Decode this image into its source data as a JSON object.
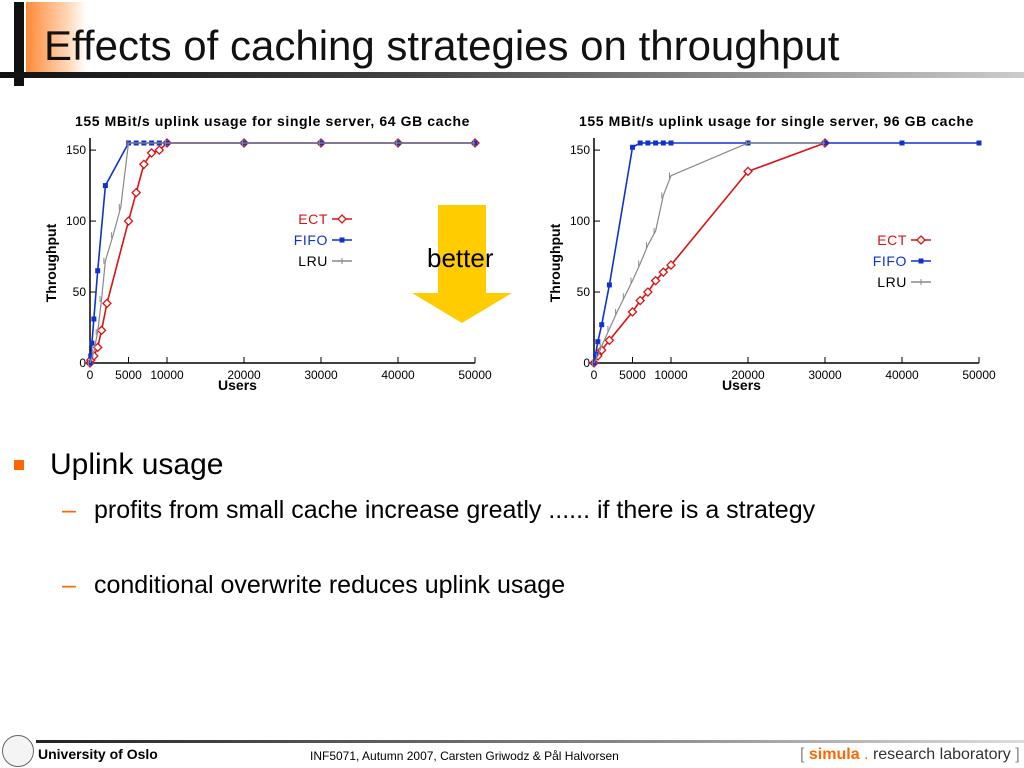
{
  "slide": {
    "title": "Effects of caching strategies on throughput",
    "better_label": "better",
    "bullet": "Uplink usage",
    "sub_bullets": [
      "profits from small cache increase greatly ...... if there is a strategy",
      "conditional overwrite reduces uplink usage"
    ],
    "dash": "–"
  },
  "footer": {
    "university": "University of Oslo",
    "course": "INF5071,  Autumn 2007,  Carsten Griwodz & Pål Halvorsen",
    "bracket_open": "[",
    "simula": "simula",
    "dot": ".",
    "lab": "research laboratory",
    "bracket_close": "]"
  },
  "colors": {
    "ECT": "#dd1111",
    "FIFO": "#1133cc",
    "LRU": "#888888",
    "accent": "#ff6600",
    "arrow": "#ffcc00"
  },
  "chart_data": [
    {
      "type": "line",
      "title": "155 MBit/s uplink usage for single server, 64 GB cache",
      "xlabel": "Users",
      "ylabel": "Throughput",
      "xlim": [
        0,
        50000
      ],
      "ylim": [
        0,
        155
      ],
      "xticks": [
        0,
        5000,
        10000,
        20000,
        30000,
        40000,
        50000
      ],
      "xtick_labels": [
        "0",
        "5000",
        "10000",
        "20000",
        "30000",
        "40000",
        "50000"
      ],
      "yticks": [
        0,
        50,
        100,
        150
      ],
      "legend": "center-right",
      "series": [
        {
          "name": "ECT",
          "marker": "diamond",
          "x": [
            0,
            100,
            500,
            1000,
            1500,
            2200,
            5000,
            6000,
            7000,
            8000,
            9000,
            10000,
            20000,
            30000,
            40000,
            50000
          ],
          "y": [
            0,
            2,
            5,
            11,
            23,
            42,
            100,
            120,
            140,
            148,
            150,
            155,
            155,
            155,
            155,
            155
          ]
        },
        {
          "name": "FIFO",
          "marker": "square",
          "x": [
            0,
            100,
            250,
            500,
            1000,
            2000,
            5000,
            6000,
            7000,
            8000,
            9000,
            10000,
            20000,
            30000,
            40000,
            50000
          ],
          "y": [
            0,
            5,
            14,
            31,
            65,
            125,
            155,
            155,
            155,
            155,
            155,
            155,
            155,
            155,
            155,
            155
          ]
        },
        {
          "name": "LRU",
          "marker": "bar",
          "x": [
            0,
            500,
            1000,
            1500,
            2000,
            3000,
            4000,
            5000,
            10000,
            20000,
            30000,
            40000,
            50000
          ],
          "y": [
            0,
            8,
            22,
            45,
            72,
            90,
            110,
            155,
            155,
            155,
            155,
            155,
            155
          ]
        }
      ]
    },
    {
      "type": "line",
      "title": "155 MBit/s uplink usage for single server, 96 GB cache",
      "xlabel": "Users",
      "ylabel": "Throughput",
      "xlim": [
        0,
        50000
      ],
      "ylim": [
        0,
        155
      ],
      "xticks": [
        0,
        5000,
        10000,
        20000,
        30000,
        40000,
        50000
      ],
      "xtick_labels": [
        "0",
        "5000",
        "10000",
        "20000",
        "30000",
        "40000",
        "50000"
      ],
      "yticks": [
        0,
        50,
        100,
        150
      ],
      "legend": "center-right",
      "series": [
        {
          "name": "ECT",
          "marker": "diamond",
          "x": [
            0,
            500,
            1000,
            2000,
            5000,
            6000,
            7000,
            8000,
            9000,
            10000,
            20000,
            30000
          ],
          "y": [
            0,
            5,
            9,
            16,
            36,
            44,
            50,
            58,
            64,
            69,
            135,
            155
          ]
        },
        {
          "name": "FIFO",
          "marker": "square",
          "x": [
            0,
            200,
            500,
            1000,
            2000,
            5000,
            6000,
            7000,
            8000,
            9000,
            10000,
            20000,
            30000,
            40000,
            50000
          ],
          "y": [
            0,
            6,
            15,
            27,
            55,
            152,
            155,
            155,
            155,
            155,
            155,
            155,
            155,
            155,
            155
          ]
        },
        {
          "name": "LRU",
          "marker": "bar",
          "x": [
            0,
            500,
            1000,
            2000,
            3000,
            4000,
            5000,
            6000,
            7000,
            8000,
            9000,
            10000,
            20000,
            30000
          ],
          "y": [
            0,
            5,
            12,
            24,
            36,
            47,
            58,
            70,
            83,
            93,
            118,
            132,
            155,
            155
          ]
        }
      ]
    }
  ]
}
